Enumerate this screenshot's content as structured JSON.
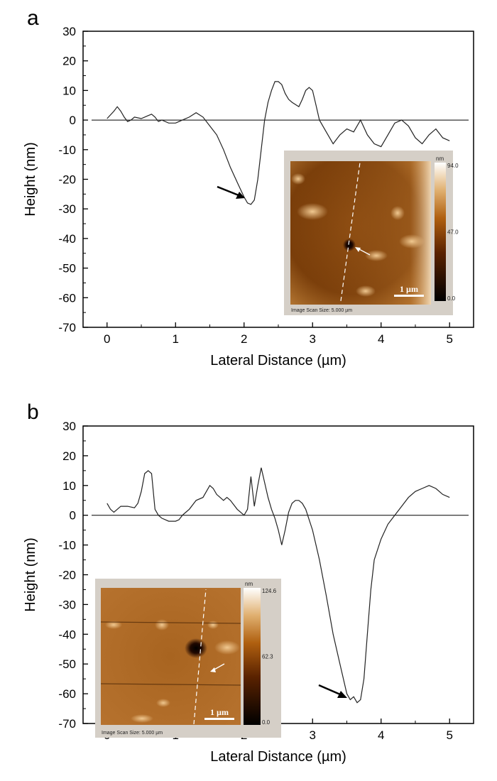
{
  "chart_data": [
    {
      "panel": "a",
      "type": "line",
      "xlabel": "Lateral Distance (µm)",
      "ylabel": "Height (nm)",
      "xlim": [
        -0.35,
        5.35
      ],
      "ylim": [
        -70,
        30
      ],
      "xticks": [
        "0",
        "1",
        "2",
        "3",
        "4",
        "5"
      ],
      "yticks": [
        "30",
        "20",
        "10",
        "0",
        "-10",
        "-20",
        "-30",
        "-40",
        "-50",
        "-60",
        "-70"
      ],
      "baseline": 0,
      "grid": false,
      "series": [
        {
          "x": [
            0.0,
            0.1,
            0.15,
            0.2,
            0.25,
            0.3,
            0.35,
            0.4,
            0.5,
            0.6,
            0.65,
            0.7,
            0.75,
            0.8,
            0.9,
            1.0,
            1.1,
            1.2,
            1.3,
            1.4,
            1.5,
            1.6,
            1.7,
            1.8,
            1.9,
            2.0,
            2.05,
            2.1,
            2.15,
            2.2,
            2.25,
            2.3,
            2.35,
            2.4,
            2.45,
            2.5,
            2.55,
            2.6,
            2.65,
            2.7,
            2.8,
            2.85,
            2.9,
            2.95,
            3.0,
            3.05,
            3.1,
            3.2,
            3.3,
            3.4,
            3.5,
            3.6,
            3.7,
            3.8,
            3.9,
            4.0,
            4.1,
            4.2,
            4.3,
            4.4,
            4.5,
            4.6,
            4.7,
            4.8,
            4.9,
            5.0
          ],
          "y": [
            0.5,
            3,
            4.5,
            3,
            1,
            -0.5,
            0,
            1,
            0.5,
            1.5,
            2,
            1,
            -0.5,
            0,
            -1,
            -1,
            0,
            1,
            2.5,
            1,
            -2,
            -5,
            -10,
            -16,
            -21,
            -26,
            -28,
            -28.5,
            -27,
            -20,
            -10,
            0,
            6,
            10,
            13,
            13,
            12,
            9,
            7,
            6,
            4.5,
            7,
            10,
            11,
            10,
            5,
            0,
            -4,
            -8,
            -5,
            -3,
            -4,
            0,
            -5,
            -8,
            -9,
            -5,
            -1,
            0,
            -2,
            -6,
            -8,
            -5,
            -3,
            -6,
            -7
          ]
        }
      ],
      "annotations": [
        "arrow to minimum near x=2.05"
      ],
      "inset": {
        "type": "heatmap",
        "colorbar_unit": "nm",
        "colorbar_ticks": [
          "94.0",
          "47.0",
          "0.0"
        ],
        "scale_bar": "1 µm",
        "caption": "Image Scan Size: 5.000 µm"
      }
    },
    {
      "panel": "b",
      "type": "line",
      "xlabel": "Lateral Distance (µm)",
      "ylabel": "Height (nm)",
      "xlim": [
        -0.35,
        5.35
      ],
      "ylim": [
        -70,
        30
      ],
      "xticks": [
        "0",
        "1",
        "2",
        "3",
        "4",
        "5"
      ],
      "yticks": [
        "30",
        "20",
        "10",
        "0",
        "-10",
        "-20",
        "-30",
        "-40",
        "-50",
        "-60",
        "-70"
      ],
      "baseline": 0,
      "grid": false,
      "series": [
        {
          "x": [
            0.0,
            0.05,
            0.1,
            0.15,
            0.2,
            0.3,
            0.4,
            0.45,
            0.5,
            0.55,
            0.6,
            0.65,
            0.7,
            0.75,
            0.8,
            0.9,
            1.0,
            1.05,
            1.1,
            1.15,
            1.2,
            1.3,
            1.4,
            1.45,
            1.5,
            1.55,
            1.6,
            1.65,
            1.7,
            1.75,
            1.8,
            1.9,
            2.0,
            2.05,
            2.1,
            2.15,
            2.2,
            2.25,
            2.3,
            2.35,
            2.4,
            2.45,
            2.5,
            2.55,
            2.6,
            2.65,
            2.7,
            2.75,
            2.8,
            2.85,
            2.9,
            3.0,
            3.1,
            3.2,
            3.3,
            3.4,
            3.5,
            3.55,
            3.6,
            3.65,
            3.7,
            3.75,
            3.8,
            3.85,
            3.9,
            4.0,
            4.1,
            4.2,
            4.3,
            4.4,
            4.5,
            4.6,
            4.7,
            4.8,
            4.9,
            5.0
          ],
          "y": [
            4,
            2,
            1,
            2,
            3,
            3,
            2.5,
            4,
            8,
            14,
            15,
            14,
            2,
            0,
            -1,
            -2,
            -2,
            -1.5,
            0,
            1,
            2,
            5,
            6,
            8,
            10,
            9,
            7,
            6,
            5,
            6,
            5,
            2,
            0,
            2,
            13,
            3,
            10,
            16,
            11,
            6,
            2,
            -1,
            -5,
            -10,
            -5,
            1,
            4,
            5,
            5,
            4,
            2,
            -5,
            -15,
            -27,
            -40,
            -50,
            -60,
            -62,
            -61,
            -63,
            -62,
            -55,
            -40,
            -25,
            -15,
            -8,
            -3,
            0,
            3,
            6,
            8,
            9,
            10,
            9,
            7,
            6
          ]
        }
      ],
      "annotations": [
        "arrow to minimum near x=3.55"
      ],
      "inset": {
        "type": "heatmap",
        "colorbar_unit": "nm",
        "colorbar_ticks": [
          "124.6",
          "62.3",
          "0.0"
        ],
        "scale_bar": "1 µm",
        "caption": "Image Scan Size: 5.000 µm"
      }
    }
  ]
}
